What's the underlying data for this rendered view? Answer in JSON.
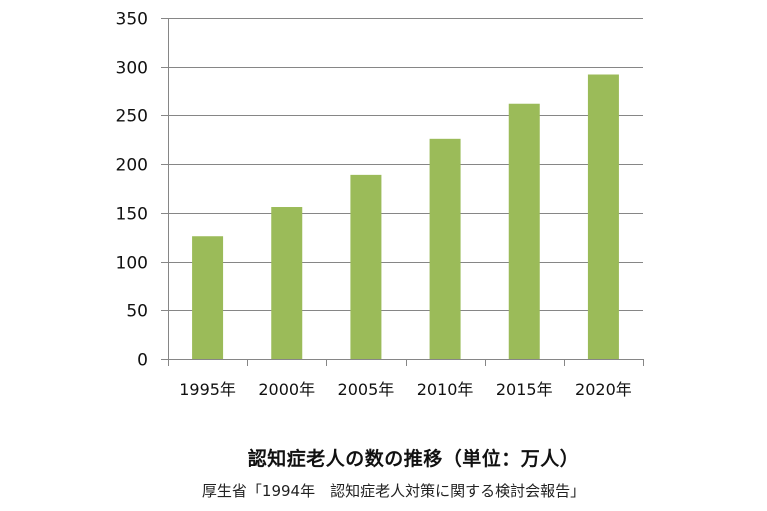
{
  "chart_data": {
    "type": "bar",
    "title": "認知症老人の数の推移（単位：万人）",
    "subtitle": "厚生省「1994年　認知症老人対策に関する検討会報告」",
    "categories": [
      "1995年",
      "2000年",
      "2005年",
      "2010年",
      "2015年",
      "2020年"
    ],
    "values": [
      126,
      156,
      189,
      226,
      262,
      292
    ],
    "xlabel": "",
    "ylabel": "",
    "ylim": [
      0,
      350
    ],
    "yticks": [
      0,
      50,
      100,
      150,
      200,
      250,
      300,
      350
    ],
    "grid": true,
    "legend": "none",
    "unit": "万人"
  },
  "colors": {
    "bar": "#9BBB59",
    "grid": "#868686",
    "axis": "#868686",
    "text": "#111111"
  }
}
